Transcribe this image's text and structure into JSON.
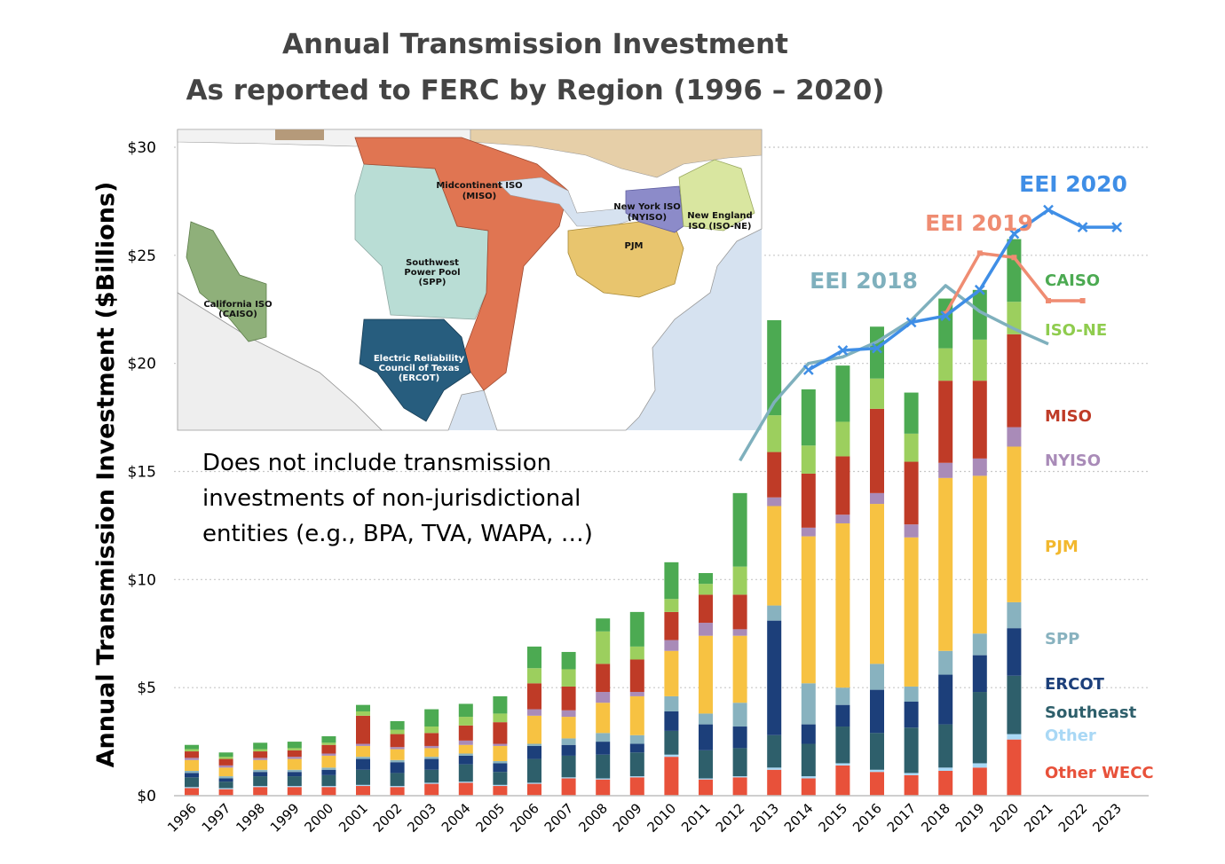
{
  "title_lines": [
    "Annual Transmission Investment",
    "As reported to FERC by Region (1996 – 2020)"
  ],
  "note_lines": [
    "Does not include transmission",
    "investments of non-jurisdictional",
    "entities (e.g., BPA, TVA, WAPA, …)"
  ],
  "map": {
    "labels": [
      "Midcontinent ISO",
      "(MISO)",
      "New York ISO",
      "(NYISO)",
      "New England",
      "ISO (ISO-NE)",
      "PJM",
      "Southwest",
      "Power Pool",
      "(SPP)",
      "California ISO",
      "(CAISO)",
      "Electric Reliability",
      "Council of Texas",
      "(ERCOT)"
    ]
  },
  "chart_data": {
    "type": "bar",
    "stacked": true,
    "ylabel": "Annual Transmission Investment ($Billions)",
    "ylim": [
      0,
      30
    ],
    "yticks": [
      0,
      5,
      10,
      15,
      20,
      25,
      30
    ],
    "ytick_labels": [
      "$0",
      "$5",
      "$10",
      "$15",
      "$20",
      "$25",
      "$30"
    ],
    "grid": "horizontal dotted",
    "legend": "right, labels beside 2020 bar",
    "categories": [
      "1996",
      "1997",
      "1998",
      "1999",
      "2000",
      "2001",
      "2002",
      "2003",
      "2004",
      "2005",
      "2006",
      "2007",
      "2008",
      "2009",
      "2010",
      "2011",
      "2012",
      "2013",
      "2014",
      "2015",
      "2016",
      "2017",
      "2018",
      "2019",
      "2020",
      "2021",
      "2022",
      "2023"
    ],
    "series": [
      {
        "name": "Other WECC",
        "color": "#e8513a",
        "values": [
          0.35,
          0.3,
          0.4,
          0.4,
          0.4,
          0.45,
          0.4,
          0.55,
          0.6,
          0.45,
          0.55,
          0.8,
          0.75,
          0.85,
          1.8,
          0.75,
          0.85,
          1.2,
          0.8,
          1.4,
          1.1,
          0.95,
          1.15,
          1.3,
          2.6,
          null,
          null,
          null
        ]
      },
      {
        "name": "Other",
        "color": "#a9d8f5",
        "values": [
          0.05,
          0.05,
          0.05,
          0.05,
          0.05,
          0.05,
          0.05,
          0.05,
          0.05,
          0.05,
          0.05,
          0.05,
          0.05,
          0.05,
          0.1,
          0.05,
          0.05,
          0.1,
          0.1,
          0.1,
          0.1,
          0.1,
          0.15,
          0.2,
          0.25,
          null,
          null,
          null
        ]
      },
      {
        "name": "Southeast",
        "color": "#2e5f6b",
        "values": [
          0.45,
          0.3,
          0.45,
          0.45,
          0.5,
          0.7,
          0.6,
          0.6,
          0.8,
          0.6,
          1.1,
          1.0,
          1.1,
          1.1,
          1.1,
          1.3,
          1.3,
          1.5,
          1.5,
          1.7,
          1.7,
          2.1,
          2.0,
          3.3,
          2.7,
          null,
          null,
          null
        ]
      },
      {
        "name": "ERCOT",
        "color": "#1c3f7a",
        "values": [
          0.2,
          0.15,
          0.2,
          0.2,
          0.25,
          0.5,
          0.5,
          0.5,
          0.4,
          0.4,
          0.6,
          0.5,
          0.6,
          0.4,
          0.9,
          1.2,
          1.0,
          5.3,
          0.9,
          1.0,
          2.0,
          1.2,
          2.3,
          1.7,
          2.2,
          null,
          null,
          null
        ]
      },
      {
        "name": "SPP",
        "color": "#88b2bf",
        "values": [
          0.1,
          0.1,
          0.1,
          0.1,
          0.1,
          0.1,
          0.1,
          0.1,
          0.1,
          0.1,
          0.1,
          0.3,
          0.4,
          0.4,
          0.7,
          0.5,
          1.1,
          0.7,
          1.9,
          0.8,
          1.2,
          0.7,
          1.1,
          1.0,
          1.2,
          null,
          null,
          null
        ]
      },
      {
        "name": "PJM",
        "color": "#f7c242",
        "values": [
          0.5,
          0.4,
          0.45,
          0.5,
          0.55,
          0.5,
          0.5,
          0.4,
          0.4,
          0.7,
          1.3,
          1.0,
          1.4,
          1.8,
          2.1,
          3.6,
          3.1,
          4.6,
          6.8,
          7.6,
          7.4,
          6.9,
          8.0,
          7.3,
          7.2,
          null,
          null,
          null
        ]
      },
      {
        "name": "NYISO",
        "color": "#a98bb8",
        "values": [
          0.1,
          0.1,
          0.1,
          0.1,
          0.1,
          0.1,
          0.1,
          0.1,
          0.2,
          0.1,
          0.3,
          0.3,
          0.5,
          0.2,
          0.5,
          0.6,
          0.3,
          0.4,
          0.4,
          0.4,
          0.5,
          0.6,
          0.7,
          0.8,
          0.9,
          null,
          null,
          null
        ]
      },
      {
        "name": "MISO",
        "color": "#bf3b27",
        "values": [
          0.3,
          0.3,
          0.3,
          0.3,
          0.4,
          1.3,
          0.6,
          0.6,
          0.7,
          1.0,
          1.2,
          1.1,
          1.3,
          1.5,
          1.3,
          1.3,
          1.6,
          2.1,
          2.5,
          2.7,
          3.9,
          2.9,
          3.8,
          3.6,
          4.3,
          null,
          null,
          null
        ]
      },
      {
        "name": "ISO-NE",
        "color": "#9ccf5e",
        "values": [
          0.1,
          0.1,
          0.1,
          0.1,
          0.1,
          0.2,
          0.2,
          0.3,
          0.4,
          0.4,
          0.7,
          0.8,
          1.5,
          0.6,
          0.6,
          0.5,
          1.3,
          1.7,
          1.3,
          1.6,
          1.4,
          1.3,
          1.5,
          1.9,
          1.5,
          null,
          null,
          null
        ]
      },
      {
        "name": "CAISO",
        "color": "#4caa52",
        "values": [
          0.2,
          0.2,
          0.3,
          0.3,
          0.3,
          0.3,
          0.4,
          0.8,
          0.6,
          0.8,
          1.0,
          0.8,
          0.6,
          1.6,
          1.7,
          0.5,
          3.4,
          4.4,
          2.6,
          2.6,
          2.4,
          1.9,
          2.3,
          2.3,
          2.9,
          null,
          null,
          null
        ]
      }
    ],
    "lines": [
      {
        "name": "EEI 2018",
        "color": "#7fb0bd",
        "x": [
          "2012",
          "2013",
          "2014",
          "2015",
          "2016",
          "2017",
          "2018",
          "2019",
          "2020",
          "2021"
        ],
        "values": [
          15.5,
          18.2,
          20.0,
          20.3,
          21.0,
          22.0,
          23.6,
          22.4,
          21.6,
          20.9
        ]
      },
      {
        "name": "EEI 2019",
        "color": "#ef8c72",
        "x": [
          "2018",
          "2019",
          "2020",
          "2021",
          "2022"
        ],
        "values": [
          22.3,
          25.1,
          24.9,
          22.9,
          22.9
        ]
      },
      {
        "name": "EEI 2020",
        "color": "#3f8ee6",
        "x": [
          "2014",
          "2015",
          "2016",
          "2017",
          "2018",
          "2019",
          "2020",
          "2021",
          "2022",
          "2023"
        ],
        "values": [
          19.7,
          20.6,
          20.7,
          21.9,
          22.2,
          23.4,
          26.0,
          27.1,
          26.3,
          26.3
        ]
      }
    ]
  }
}
